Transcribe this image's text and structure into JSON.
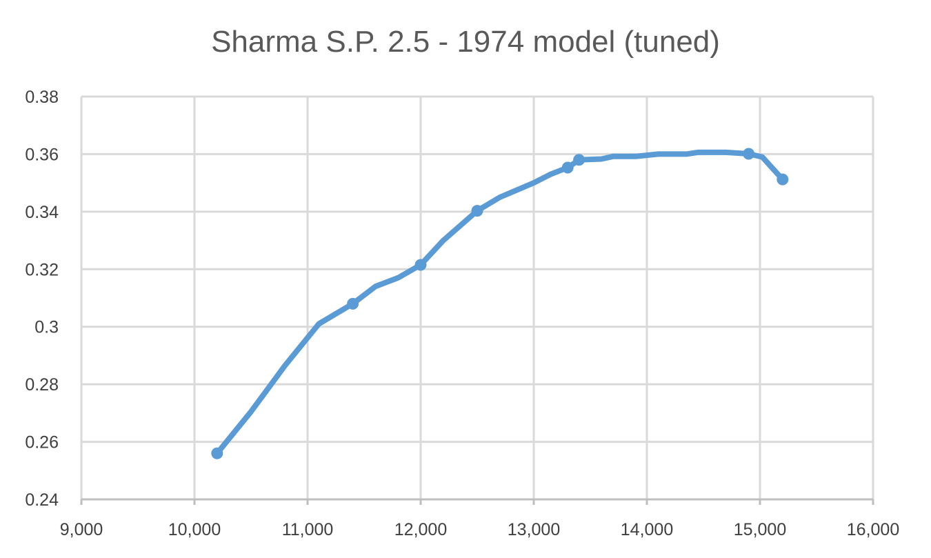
{
  "chart_data": {
    "type": "line",
    "title": "Sharma S.P. 2.5 - 1974 model (tuned)",
    "xlabel": "",
    "ylabel": "",
    "xlim": [
      9000,
      16000
    ],
    "ylim": [
      0.24,
      0.38
    ],
    "x_ticks": [
      9000,
      10000,
      11000,
      12000,
      13000,
      14000,
      15000,
      16000
    ],
    "x_tick_labels": [
      "9,000",
      "10,000",
      "11,000",
      "12,000",
      "13,000",
      "14,000",
      "15,000",
      "16,000"
    ],
    "y_ticks": [
      0.24,
      0.26,
      0.28,
      0.3,
      0.32,
      0.34,
      0.36,
      0.38
    ],
    "y_tick_labels": [
      "0.24",
      "0.26",
      "0.28",
      "0.3",
      "0.32",
      "0.34",
      "0.36",
      "0.38"
    ],
    "grid": true,
    "legend": "none",
    "series": [
      {
        "color": "#5B9BD5",
        "marker_points": [
          {
            "x": 10200,
            "y": 0.256
          },
          {
            "x": 11400,
            "y": 0.308
          },
          {
            "x": 12000,
            "y": 0.3215
          },
          {
            "x": 12500,
            "y": 0.3403
          },
          {
            "x": 13300,
            "y": 0.3553
          },
          {
            "x": 13400,
            "y": 0.358
          },
          {
            "x": 14900,
            "y": 0.3601
          },
          {
            "x": 15200,
            "y": 0.3512
          }
        ],
        "curve_points": [
          {
            "x": 10200,
            "y": 0.256
          },
          {
            "x": 10500,
            "y": 0.2705
          },
          {
            "x": 10800,
            "y": 0.2865
          },
          {
            "x": 11100,
            "y": 0.301
          },
          {
            "x": 11400,
            "y": 0.308
          },
          {
            "x": 11600,
            "y": 0.314
          },
          {
            "x": 11800,
            "y": 0.317
          },
          {
            "x": 12000,
            "y": 0.3215
          },
          {
            "x": 12200,
            "y": 0.33
          },
          {
            "x": 12500,
            "y": 0.3403
          },
          {
            "x": 12700,
            "y": 0.345
          },
          {
            "x": 13000,
            "y": 0.35
          },
          {
            "x": 13150,
            "y": 0.353
          },
          {
            "x": 13300,
            "y": 0.3553
          },
          {
            "x": 13400,
            "y": 0.358
          },
          {
            "x": 13600,
            "y": 0.3583
          },
          {
            "x": 13700,
            "y": 0.3592
          },
          {
            "x": 13900,
            "y": 0.3592
          },
          {
            "x": 14100,
            "y": 0.36
          },
          {
            "x": 14350,
            "y": 0.36
          },
          {
            "x": 14450,
            "y": 0.3606
          },
          {
            "x": 14700,
            "y": 0.3606
          },
          {
            "x": 14900,
            "y": 0.3601
          },
          {
            "x": 15020,
            "y": 0.359
          },
          {
            "x": 15200,
            "y": 0.3512
          }
        ]
      }
    ]
  }
}
